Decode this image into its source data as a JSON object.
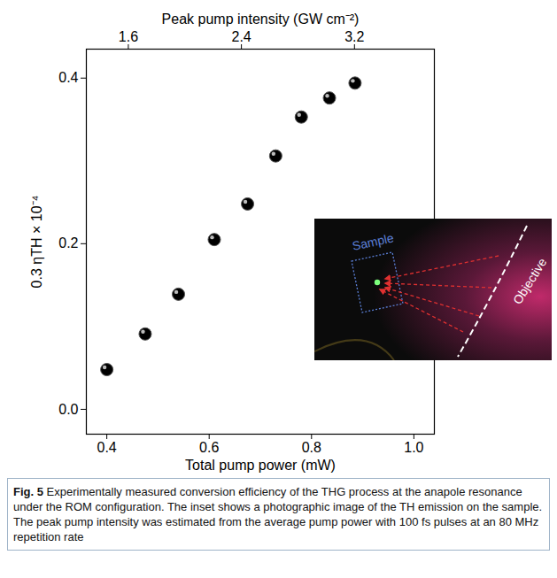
{
  "chart_data": {
    "type": "scatter",
    "x_label": "Total pump power (mW)",
    "x2_label": "Peak pump intensity (GW cm⁻²)",
    "y_label": "0.3 ηTH × 10⁻⁴",
    "x": [
      0.4,
      0.475,
      0.54,
      0.61,
      0.675,
      0.73,
      0.78,
      0.835,
      0.885
    ],
    "values": [
      0.048,
      0.091,
      0.139,
      0.205,
      0.248,
      0.306,
      0.353,
      0.376,
      0.394
    ],
    "color": "#000000",
    "marker": "circle",
    "xlim": [
      0.36,
      1.04
    ],
    "xticks": [
      0.4,
      0.6,
      0.8,
      {
        "value": 1.0,
        "label": "1.0"
      }
    ],
    "x2lim": [
      1.303,
      3.765
    ],
    "x2ticks": [
      1.6,
      2.4,
      3.2
    ],
    "ylim": [
      -0.03,
      0.435
    ],
    "yticks": [
      {
        "value": 0.0,
        "label": "0.0"
      },
      0.2,
      0.4
    ],
    "grid": false,
    "annotations": [
      "Sample",
      "Objective"
    ],
    "caption": {
      "label": "Fig. 5",
      "text": "Experimentally measured conversion efficiency of the THG process at the anapole resonance under the ROM configuration. The inset shows a photographic image of the TH emission on the sample. The peak pump intensity was estimated from the average pump power with 100 fs pulses at an 80 MHz repetition rate"
    }
  }
}
